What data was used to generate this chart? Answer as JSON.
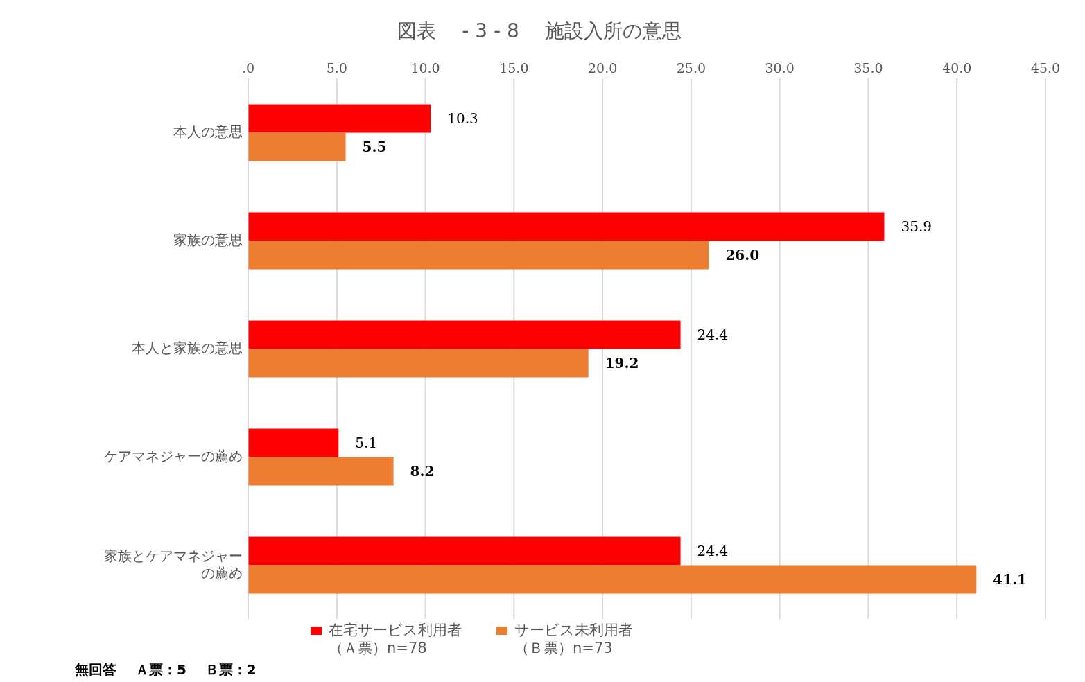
{
  "chart_data": {
    "type": "bar",
    "orientation": "horizontal",
    "title": "図表　 - 3 - 8　 施設入所の意思",
    "categories": [
      "本人の意思",
      "家族の意思",
      "本人と家族の意思",
      "ケアマネジャーの薦め",
      "家族とケアマネジャーの薦め"
    ],
    "series": [
      {
        "name": "在宅サービス利用者（Ａ票）n=78",
        "color": "#ff0000",
        "values": [
          10.3,
          35.9,
          24.4,
          5.1,
          24.4
        ],
        "value_labels": [
          "10.3",
          "35.9",
          "24.4",
          "5.1",
          "24.4"
        ]
      },
      {
        "name": "サービス未利用者（Ｂ票）n=73",
        "color": "#ed7d31",
        "values": [
          5.5,
          26.0,
          19.2,
          8.2,
          41.1
        ],
        "value_labels": [
          "5.5",
          "26.0",
          "19.2",
          "8.2",
          "41.1"
        ]
      }
    ],
    "xlim": [
      0,
      45
    ],
    "xticks": [
      {
        "value": 0,
        "label": ".0"
      },
      {
        "value": 5,
        "label": "5.0"
      },
      {
        "value": 10,
        "label": "10.0"
      },
      {
        "value": 15,
        "label": "15.0"
      },
      {
        "value": 20,
        "label": "20.0"
      },
      {
        "value": 25,
        "label": "25.0"
      },
      {
        "value": 30,
        "label": "30.0"
      },
      {
        "value": 35,
        "label": "35.0"
      },
      {
        "value": 40,
        "label": "40.0"
      },
      {
        "value": 45,
        "label": "45.0"
      }
    ],
    "grid": "x",
    "legend": "bottom",
    "annotations": [
      "無回答　 Ａ票：5　 Ｂ票：2"
    ]
  }
}
